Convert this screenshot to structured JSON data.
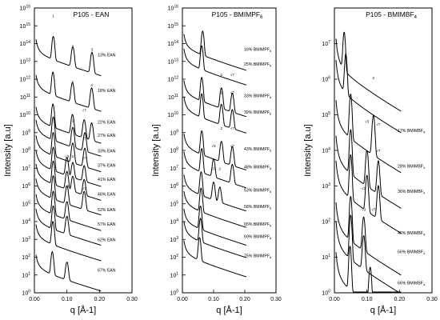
{
  "chart_data": [
    {
      "type": "line",
      "title": "P105 - EAN",
      "xlabel": "q [Å-1]",
      "ylabel": "Intensity [a.u]",
      "yscale": "log",
      "xlim": [
        0.0,
        0.3
      ],
      "xticks": [
        "0.00",
        "0.10",
        "0.20",
        "0.30"
      ],
      "ylim": [
        1,
        1e+16
      ],
      "yticks": [
        {
          "b": "10",
          "e": "0"
        },
        {
          "b": "10",
          "e": "1"
        },
        {
          "b": "10",
          "e": "2"
        },
        {
          "b": "10",
          "e": "3"
        },
        {
          "b": "10",
          "e": "4"
        },
        {
          "b": "10",
          "e": "5"
        },
        {
          "b": "10",
          "e": "6"
        },
        {
          "b": "10",
          "e": "7"
        },
        {
          "b": "10",
          "e": "8"
        },
        {
          "b": "10",
          "e": "9"
        },
        {
          "b": "10",
          "e": "10"
        },
        {
          "b": "10",
          "e": "11"
        },
        {
          "b": "10",
          "e": "12"
        },
        {
          "b": "10",
          "e": "13"
        },
        {
          "b": "10",
          "e": "14"
        },
        {
          "b": "10",
          "e": "15"
        },
        {
          "b": "10",
          "e": "16"
        }
      ],
      "series": [
        {
          "name": "13% EAN",
          "base": 100000000000000.0,
          "peak": 0.058,
          "peaks": [
            0.058,
            0.118,
            0.177
          ]
        },
        {
          "name": "18% EAN",
          "base": 1000000000000.0,
          "peak": 0.057,
          "peaks": [
            0.057,
            0.117,
            0.176
          ]
        },
        {
          "name": "22% EAN",
          "base": 16000000000.0,
          "peak": 0.057,
          "peaks": [
            0.057,
            0.117,
            0.153,
            0.176
          ]
        },
        {
          "name": "27% EAN",
          "base": 3000000000.0,
          "peak": 0.058,
          "peaks": [
            0.058,
            0.118,
            0.155
          ]
        },
        {
          "name": "33% EAN",
          "base": 400000000.0,
          "peak": 0.058,
          "peaks": [
            0.058,
            0.118,
            0.155
          ]
        },
        {
          "name": "37% EAN",
          "base": 60000000.0,
          "peak": 0.058,
          "peaks": [
            0.058,
            0.1,
            0.118,
            0.153
          ]
        },
        {
          "name": "41% EAN",
          "base": 10000000.0,
          "peak": 0.058,
          "peaks": [
            0.058,
            0.1,
            0.118,
            0.153
          ]
        },
        {
          "name": "46% EAN",
          "base": 1500000.0,
          "peak": 0.058,
          "peaks": [
            0.058,
            0.1,
            0.153
          ]
        },
        {
          "name": "52% EAN",
          "base": 200000.0,
          "peak": 0.058,
          "peaks": [
            0.058,
            0.1
          ]
        },
        {
          "name": "57% EAN",
          "base": 30000.0,
          "peak": 0.058,
          "peaks": [
            0.058,
            0.1
          ]
        },
        {
          "name": "62% EAN",
          "base": 4000.0,
          "peak": 0.057,
          "peaks": [
            0.057
          ]
        },
        {
          "name": "67% EAN",
          "base": 80.0,
          "peak": 0.055,
          "peaks": [
            0.055,
            0.1
          ]
        }
      ],
      "peak_labels": [
        {
          "text": "1",
          "q": 0.058,
          "y": 3000000000000000.0
        },
        {
          "text": "2",
          "q": 0.118,
          "y": 60000000000000.0
        },
        {
          "text": "3",
          "q": 0.177,
          "y": 40000000000000.0
        },
        {
          "text": "2",
          "q": 0.117,
          "y": 600000000000.0
        },
        {
          "text": "3",
          "q": 0.176,
          "y": 400000000000.0
        },
        {
          "text": "√7",
          "q": 0.153,
          "y": 15000000000.0
        },
        {
          "text": "2",
          "q": 0.118,
          "y": 4000000000.0
        },
        {
          "text": "√7",
          "q": 0.155,
          "y": 400000000.0
        },
        {
          "text": "√3",
          "q": 0.1,
          "y": 40000000.0
        },
        {
          "text": "2",
          "q": 0.118,
          "y": 40000000.0
        },
        {
          "text": "√7",
          "q": 0.153,
          "y": 30000000.0
        },
        {
          "text": "√3",
          "q": 0.1,
          "y": 800000.0
        },
        {
          "text": "√7",
          "q": 0.153,
          "y": 600000.0
        }
      ]
    },
    {
      "type": "line",
      "title": "P105 - BMIMPF",
      "title_sub": "6",
      "xlabel": "q [Å-1]",
      "ylabel": "Intensity [a.u]",
      "yscale": "log",
      "xlim": [
        0.0,
        0.3
      ],
      "xticks": [
        "0.00",
        "0.10",
        "0.20",
        "0.30"
      ],
      "ylim": [
        1,
        1e+16
      ],
      "yticks": [
        {
          "b": "10",
          "e": "0"
        },
        {
          "b": "10",
          "e": "1"
        },
        {
          "b": "10",
          "e": "2"
        },
        {
          "b": "10",
          "e": "3"
        },
        {
          "b": "10",
          "e": "4"
        },
        {
          "b": "10",
          "e": "5"
        },
        {
          "b": "10",
          "e": "6"
        },
        {
          "b": "10",
          "e": "7"
        },
        {
          "b": "10",
          "e": "8"
        },
        {
          "b": "10",
          "e": "9"
        },
        {
          "b": "10",
          "e": "10"
        },
        {
          "b": "10",
          "e": "11"
        },
        {
          "b": "10",
          "e": "12"
        },
        {
          "b": "10",
          "e": "13"
        },
        {
          "b": "10",
          "e": "14"
        },
        {
          "b": "10",
          "e": "15"
        },
        {
          "b": "10",
          "e": "16"
        }
      ],
      "series": [
        {
          "name": "16% BMIMPF",
          "sub": "6",
          "base": 200000000000000.0,
          "peak": 0.065,
          "peaks": [
            0.065
          ]
        },
        {
          "name": "25% BMIMPF",
          "sub": "6",
          "base": 30000000000000.0,
          "peak": 0.062,
          "peaks": [
            0.062
          ]
        },
        {
          "name": "33% BMIMPF",
          "sub": "6",
          "base": 500000000000.0,
          "peak": 0.062,
          "peaks": [
            0.062,
            0.125,
            0.16
          ]
        },
        {
          "name": "39% BMIMPF",
          "sub": "6",
          "base": 60000000000.0,
          "peak": 0.062,
          "peaks": [
            0.062,
            0.125,
            0.16
          ]
        },
        {
          "name": "43% BMIMPF",
          "sub": "6",
          "base": 500000000.0,
          "peak": 0.062,
          "peaks": [
            0.062,
            0.125,
            0.16
          ]
        },
        {
          "name": "48% BMIMPF",
          "sub": "6",
          "base": 50000000.0,
          "peak": 0.062,
          "peaks": [
            0.062,
            0.1,
            0.16
          ]
        },
        {
          "name": "53% BMIMPF",
          "sub": "6",
          "base": 2500000.0,
          "peak": 0.06,
          "peaks": [
            0.06,
            0.1,
            0.12
          ]
        },
        {
          "name": "58% BMIMPF",
          "sub": "6",
          "base": 300000.0,
          "peak": 0.06,
          "peaks": [
            0.06
          ]
        },
        {
          "name": "65% BMIMPF",
          "sub": "6",
          "base": 30000.0,
          "peak": 0.058,
          "peaks": [
            0.058
          ]
        },
        {
          "name": "69% BMIMPF",
          "sub": "6",
          "base": 6000.0,
          "peak": 0.058,
          "peaks": [
            0.058
          ]
        },
        {
          "name": "75% BMIMPF",
          "sub": "6",
          "base": 500.0,
          "peak": 0.055,
          "peaks": [
            0.055
          ]
        }
      ],
      "peak_labels": [
        {
          "text": "2",
          "q": 0.125,
          "y": 1500000000000.0
        },
        {
          "text": "√7",
          "q": 0.16,
          "y": 1500000000000.0
        },
        {
          "text": "2",
          "q": 0.125,
          "y": 150000000000.0
        },
        {
          "text": "√7",
          "q": 0.16,
          "y": 150000000000.0
        },
        {
          "text": "2",
          "q": 0.125,
          "y": 1500000000.0
        },
        {
          "text": "√7",
          "q": 0.16,
          "y": 1500000000.0
        },
        {
          "text": "√3",
          "q": 0.1,
          "y": 150000000.0
        },
        {
          "text": "√7",
          "q": 0.16,
          "y": 150000000.0
        },
        {
          "text": "√3",
          "q": 0.1,
          "y": 8000000.0
        },
        {
          "text": "2",
          "q": 0.12,
          "y": 8000000.0
        }
      ]
    },
    {
      "type": "line",
      "title": "P105 - BMIMBF",
      "title_sub": "4",
      "xlabel": "q [Å-1]",
      "ylabel": "Intensity [a.u]",
      "yscale": "log",
      "xlim": [
        0.0,
        0.3
      ],
      "xticks": [
        "0.00",
        "0.10",
        "0.20",
        "0.30"
      ],
      "ylim": [
        1,
        100000000.0
      ],
      "yticks": [
        {
          "b": "10",
          "e": "0"
        },
        {
          "b": "10",
          "e": "1"
        },
        {
          "b": "10",
          "e": "2"
        },
        {
          "b": "10",
          "e": "3"
        },
        {
          "b": "10",
          "e": "4"
        },
        {
          "b": "10",
          "e": "5"
        },
        {
          "b": "10",
          "e": "6"
        },
        {
          "b": "10",
          "e": "7"
        }
      ],
      "series": [
        {
          "name": "",
          "base": 8000000.0,
          "peak": 0.03,
          "peaks": [
            0.03
          ]
        },
        {
          "name": "",
          "base": 2000000.0,
          "peak": 0.035,
          "peaks": [
            0.035
          ]
        },
        {
          "name": "17% BMIMBF",
          "sub": "4",
          "base": 150000.0,
          "peak": 0.05,
          "peaks": [
            0.05,
            0.12
          ]
        },
        {
          "name": "28% BMIMBF",
          "sub": "4",
          "base": 15000.0,
          "peak": 0.05,
          "peaks": [
            0.05,
            0.1,
            0.135
          ]
        },
        {
          "name": "36% BMIMBF",
          "sub": "4",
          "base": 3000.0,
          "peak": 0.05,
          "peaks": [
            0.05,
            0.1,
            0.135
          ]
        },
        {
          "name": "46% BMIMBF",
          "sub": "4",
          "base": 200.0,
          "peak": 0.05,
          "peaks": [
            0.05,
            0.09
          ]
        },
        {
          "name": "56% BMIMBF",
          "sub": "4",
          "base": 60.0,
          "peak": 0.05,
          "peaks": [
            0.05,
            0.09
          ]
        },
        {
          "name": "66% BMIMBF",
          "sub": "4",
          "base": 8,
          "peak": 0.048,
          "peaks": [
            0.048,
            0.11
          ]
        }
      ],
      "peak_labels": [
        {
          "text": "2",
          "q": 0.12,
          "y": 1000000.0
        },
        {
          "text": "√3",
          "q": 0.1,
          "y": 60000.0
        },
        {
          "text": "√7",
          "q": 0.135,
          "y": 50000.0
        },
        {
          "text": "√7",
          "q": 0.135,
          "y": 9000.0
        },
        {
          "text": "√3",
          "q": 0.09,
          "y": 800.0
        },
        {
          "text": "√7",
          "q": 0.12,
          "y": 200.0
        },
        {
          "text": "√3",
          "q": 0.09,
          "y": 200.0
        }
      ]
    }
  ]
}
